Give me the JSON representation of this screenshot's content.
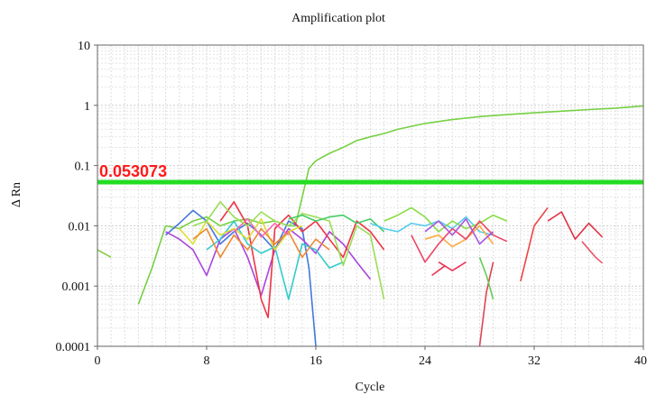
{
  "chart_data": {
    "type": "line",
    "title": "Amplification plot",
    "xlabel": "Cycle",
    "ylabel": "Δ Rn",
    "x_scale": "linear",
    "y_scale": "log",
    "xlim": [
      0,
      40
    ],
    "ylim": [
      0.0001,
      10
    ],
    "x_ticks": [
      "0",
      "8",
      "16",
      "24",
      "32",
      "40"
    ],
    "x_tick_values": [
      0,
      8,
      16,
      24,
      32,
      40
    ],
    "y_ticks": [
      "10",
      "1",
      "0.1",
      "0.01",
      "0.001",
      "0.0001"
    ],
    "y_tick_values": [
      10,
      1,
      0.1,
      0.01,
      0.001,
      0.0001
    ],
    "grid": true,
    "legend": "none",
    "threshold": {
      "value": 0.053073,
      "label": "0.053073",
      "color": "#22dd22",
      "label_color": "#ff1a1a"
    },
    "series": [
      {
        "color": "#88cc44",
        "x": [
          0,
          1
        ],
        "y": [
          0.004,
          0.003
        ]
      },
      {
        "color": "#77d044",
        "x": [
          3,
          3.5,
          4,
          5,
          6,
          7,
          8,
          9,
          10,
          11,
          12,
          13,
          14,
          14.5,
          15,
          15.5,
          16,
          17,
          18,
          19,
          20,
          21,
          22,
          24,
          26,
          28,
          30,
          32,
          34,
          36,
          38,
          40
        ],
        "y": [
          0.0005,
          0.001,
          0.002,
          0.01,
          0.009,
          0.012,
          0.014,
          0.01,
          0.012,
          0.013,
          0.011,
          0.012,
          0.01,
          0.01,
          0.03,
          0.09,
          0.12,
          0.16,
          0.2,
          0.26,
          0.3,
          0.34,
          0.4,
          0.5,
          0.58,
          0.65,
          0.7,
          0.75,
          0.8,
          0.85,
          0.9,
          0.98
        ]
      },
      {
        "color": "#4477dd",
        "x": [
          5,
          6,
          7,
          8,
          9,
          10,
          11,
          12,
          13,
          14,
          15,
          15.5,
          16
        ],
        "y": [
          0.007,
          0.011,
          0.018,
          0.012,
          0.005,
          0.008,
          0.011,
          0.007,
          0.004,
          0.012,
          0.009,
          0.002,
          0.0001
        ]
      },
      {
        "color": "#aa44dd",
        "x": [
          5,
          6,
          7,
          8,
          9,
          10,
          11,
          12,
          13,
          14,
          15,
          16,
          17,
          18,
          19,
          20
        ],
        "y": [
          0.008,
          0.006,
          0.004,
          0.0015,
          0.006,
          0.009,
          0.003,
          0.0007,
          0.004,
          0.009,
          0.006,
          0.0035,
          0.008,
          0.005,
          0.0025,
          0.0013
        ]
      },
      {
        "color": "#ee3344",
        "x": [
          9,
          10,
          11,
          12,
          12.5,
          13,
          14,
          15,
          16,
          17,
          18,
          19,
          20,
          21
        ],
        "y": [
          0.012,
          0.025,
          0.01,
          0.0006,
          0.0003,
          0.009,
          0.015,
          0.008,
          0.012,
          0.006,
          0.003,
          0.012,
          0.008,
          0.004
        ]
      },
      {
        "color": "#33cccc",
        "x": [
          8,
          9,
          10,
          11,
          12,
          13,
          14,
          15,
          16,
          17,
          18
        ],
        "y": [
          0.004,
          0.006,
          0.012,
          0.005,
          0.0035,
          0.0045,
          0.0006,
          0.005,
          0.004,
          0.002,
          0.0025
        ]
      },
      {
        "color": "#dddd33",
        "x": [
          6,
          7,
          8,
          9,
          10,
          11,
          12,
          13,
          14,
          15
        ],
        "y": [
          0.009,
          0.005,
          0.012,
          0.007,
          0.009,
          0.006,
          0.013,
          0.004,
          0.008,
          0.01
        ]
      },
      {
        "color": "#ee8833",
        "x": [
          7,
          8,
          9,
          10,
          11,
          12,
          13,
          14,
          15,
          16,
          17
        ],
        "y": [
          0.006,
          0.009,
          0.003,
          0.007,
          0.004,
          0.009,
          0.005,
          0.008,
          0.003,
          0.006,
          0.004
        ]
      },
      {
        "color": "#ff66aa",
        "x": [
          10,
          11,
          12,
          13,
          14
        ],
        "y": [
          0.008,
          0.013,
          0.0065,
          0.011,
          0.007
        ]
      },
      {
        "color": "#99dd55",
        "x": [
          7,
          8,
          9,
          10,
          11,
          12,
          13,
          14,
          15,
          16,
          17,
          18,
          19,
          20,
          21
        ],
        "y": [
          0.01,
          0.012,
          0.025,
          0.014,
          0.01,
          0.017,
          0.012,
          0.01,
          0.016,
          0.014,
          0.012,
          0.0022,
          0.01,
          0.007,
          0.0006
        ]
      },
      {
        "color": "#44cc66",
        "x": [
          14,
          15,
          16,
          17,
          18,
          19,
          20,
          21
        ],
        "y": [
          0.013,
          0.015,
          0.012,
          0.014,
          0.015,
          0.011,
          0.013,
          0.008
        ]
      },
      {
        "color": "#55ccee",
        "x": [
          20,
          21,
          22,
          23,
          24,
          25,
          26,
          27,
          28,
          29
        ],
        "y": [
          0.011,
          0.009,
          0.008,
          0.011,
          0.01,
          0.012,
          0.009,
          0.014,
          0.008,
          0.007
        ]
      },
      {
        "color": "#88dd44",
        "x": [
          21,
          22,
          23,
          24,
          25,
          26,
          27,
          28,
          29,
          30
        ],
        "y": [
          0.012,
          0.015,
          0.02,
          0.014,
          0.008,
          0.012,
          0.009,
          0.011,
          0.015,
          0.012
        ]
      },
      {
        "color": "#ffaa44",
        "x": [
          24,
          25,
          26,
          27,
          28,
          29
        ],
        "y": [
          0.006,
          0.007,
          0.0045,
          0.006,
          0.01,
          0.005
        ]
      },
      {
        "color": "#ee4466",
        "x": [
          23,
          24,
          25,
          26,
          27,
          28,
          29,
          30
        ],
        "y": [
          0.007,
          0.0025,
          0.005,
          0.009,
          0.006,
          0.012,
          0.007,
          0.0055
        ]
      },
      {
        "color": "#aa55dd",
        "x": [
          24,
          25,
          26,
          27,
          28,
          29
        ],
        "y": [
          0.008,
          0.012,
          0.007,
          0.013,
          0.005,
          0.008
        ]
      },
      {
        "color": "#ee3355",
        "x": [
          25,
          26,
          27
        ],
        "y": [
          0.0025,
          0.0018,
          0.0025
        ]
      },
      {
        "color": "#ee3355",
        "x": [
          24.5,
          25.5
        ],
        "y": [
          0.0015,
          0.0022
        ]
      },
      {
        "color": "#dd4455",
        "x": [
          28,
          28.5,
          29
        ],
        "y": [
          0.0001,
          0.0008,
          0.0025
        ]
      },
      {
        "color": "#66cc55",
        "x": [
          28,
          28.5,
          29
        ],
        "y": [
          0.003,
          0.0015,
          0.0006
        ]
      },
      {
        "color": "#ee4444",
        "x": [
          31,
          32,
          33
        ],
        "y": [
          0.0012,
          0.01,
          0.02
        ]
      },
      {
        "color": "#dd3344",
        "x": [
          33,
          34,
          35,
          36,
          37
        ],
        "y": [
          0.012,
          0.017,
          0.006,
          0.011,
          0.0065
        ]
      },
      {
        "color": "#ee5566",
        "x": [
          35.5,
          36.5,
          37
        ],
        "y": [
          0.0055,
          0.003,
          0.0024
        ]
      }
    ]
  }
}
